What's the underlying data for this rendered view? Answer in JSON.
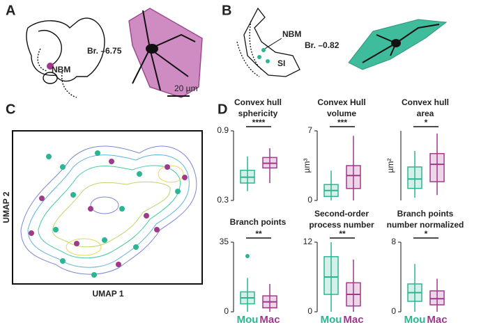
{
  "panels": {
    "a": {
      "label": "A",
      "bregma": "Br. –6.75",
      "region": "NBM",
      "scale": "20 µm"
    },
    "b": {
      "label": "B",
      "region": "NBM",
      "bregma": "Br. –0.82",
      "region2": "SI"
    },
    "c": {
      "label": "C",
      "ylabel": "UMAP 2",
      "xlabel": "UMAP 1"
    },
    "d": {
      "label": "D"
    }
  },
  "chart_data": [
    {
      "type": "box",
      "title": [
        "Convex hull",
        "sphericity"
      ],
      "ylim": [
        0.3,
        0.9
      ],
      "yticks": [
        0.3,
        0.9
      ],
      "significance": "****",
      "series": [
        {
          "color": "#2bb592",
          "min": 0.38,
          "q1": 0.45,
          "median": 0.5,
          "q3": 0.56,
          "max": 0.68
        },
        {
          "color": "#a1398b",
          "min": 0.45,
          "q1": 0.58,
          "median": 0.62,
          "q3": 0.67,
          "max": 0.75
        }
      ]
    },
    {
      "type": "box",
      "title": [
        "Convex Hull",
        "volume"
      ],
      "ylabel": "µm³",
      "ylim": [
        0,
        7
      ],
      "yticks": [
        0,
        7
      ],
      "significance": "***",
      "series": [
        {
          "color": "#2bb592",
          "min": 0,
          "q1": 0.4,
          "median": 1.0,
          "q3": 1.6,
          "max": 3.0
        },
        {
          "color": "#a1398b",
          "min": 0,
          "q1": 1.2,
          "median": 2.5,
          "q3": 3.5,
          "max": 6.5
        }
      ]
    },
    {
      "type": "box",
      "title": [
        "Convex hull",
        "area"
      ],
      "ylabel": "µm²",
      "ylim": [
        0,
        2.6
      ],
      "significance": "*",
      "series": [
        {
          "color": "#2bb592",
          "min": 0.1,
          "q1": 0.45,
          "median": 0.8,
          "q3": 1.25,
          "max": 1.85
        },
        {
          "color": "#a1398b",
          "min": 0.2,
          "q1": 0.7,
          "median": 1.35,
          "q3": 1.75,
          "max": 2.5
        }
      ]
    },
    {
      "type": "box",
      "title": [
        "Branch points"
      ],
      "ylim": [
        0,
        35
      ],
      "yticks": [
        0,
        35
      ],
      "significance": "**",
      "categories": [
        "Mou",
        "Mac"
      ],
      "series": [
        {
          "color": "#2bb592",
          "min": 0,
          "q1": 4,
          "median": 7,
          "q3": 10,
          "max": 17,
          "outliers": [
            28
          ]
        },
        {
          "color": "#a1398b",
          "min": 0,
          "q1": 2,
          "median": 5,
          "q3": 8,
          "max": 14
        }
      ]
    },
    {
      "type": "box",
      "title": [
        "Second-order",
        "process number"
      ],
      "ylim": [
        0,
        12
      ],
      "yticks": [
        0,
        12
      ],
      "significance": "**",
      "categories": [
        "Mou",
        "Mac"
      ],
      "series": [
        {
          "color": "#2bb592",
          "min": 0,
          "q1": 3,
          "median": 6,
          "q3": 9.5,
          "max": 12
        },
        {
          "color": "#a1398b",
          "min": 0,
          "q1": 1,
          "median": 3,
          "q3": 5,
          "max": 9
        }
      ]
    },
    {
      "type": "box",
      "title": [
        "Branch points",
        "number normalized"
      ],
      "ylim": [
        0,
        8
      ],
      "yticks": [
        0,
        8
      ],
      "significance": "*",
      "categories": [
        "Mou",
        "Mac"
      ],
      "series": [
        {
          "color": "#2bb592",
          "min": 0,
          "q1": 1.2,
          "median": 2.2,
          "q3": 3.2,
          "max": 5.5
        },
        {
          "color": "#a1398b",
          "min": 0,
          "q1": 0.8,
          "median": 1.5,
          "q3": 2.4,
          "max": 3.8
        }
      ]
    }
  ]
}
